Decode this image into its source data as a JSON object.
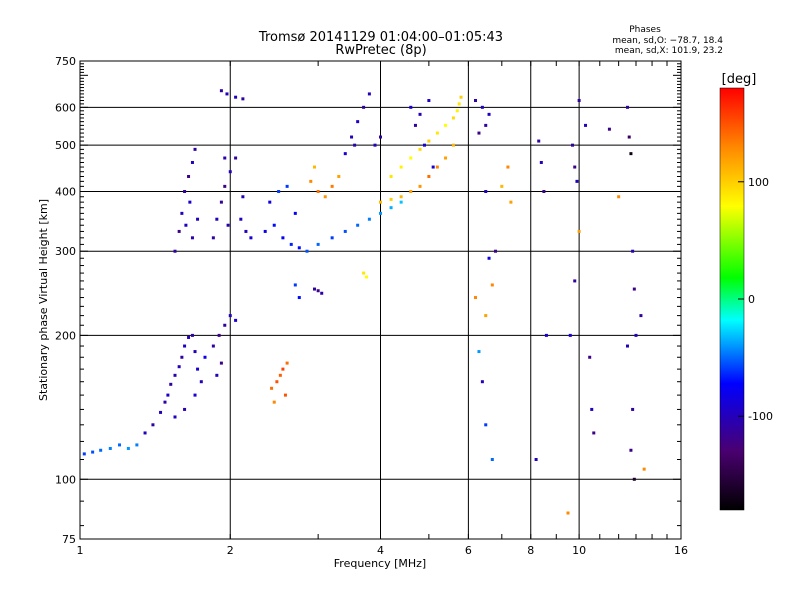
{
  "chart_data": {
    "type": "scatter",
    "title": "Tromsø 20141129 01:04:00–01:05:43",
    "subtitle": "RwPretec (8p)",
    "xlabel": "Frequency [MHz]",
    "ylabel": "Stationary phase Virtual Height [km]",
    "x_scale": "log",
    "y_scale": "log",
    "xlim": [
      1,
      16
    ],
    "ylim": [
      75,
      750
    ],
    "x_ticks": [
      1,
      2,
      4,
      6,
      8,
      10,
      16
    ],
    "y_ticks": [
      75,
      100,
      200,
      300,
      400,
      500,
      600,
      750
    ],
    "x_grid": [
      2,
      4,
      6,
      8,
      10
    ],
    "y_grid": [
      100,
      200,
      300,
      400,
      500,
      600
    ],
    "grid": true,
    "stats": {
      "heading": "Phases",
      "line1": "mean, sd,O: −78.7, 18.4",
      "line2": "mean, sd,X: 101.9, 23.2"
    },
    "colorbar": {
      "label": "[deg]",
      "range": [
        -180,
        180
      ],
      "ticks": [
        100,
        0,
        -100
      ],
      "colors": [
        "#ff0000",
        "#ff8800",
        "#ffff00",
        "#00ff00",
        "#00ffff",
        "#0000ff",
        "#000000"
      ]
    },
    "points": [
      [
        1.02,
        113,
        -60
      ],
      [
        1.06,
        114,
        -55
      ],
      [
        1.1,
        115,
        -50
      ],
      [
        1.15,
        116,
        -45
      ],
      [
        1.2,
        118,
        -50
      ],
      [
        1.25,
        116,
        -40
      ],
      [
        1.3,
        118,
        -45
      ],
      [
        1.35,
        125,
        -100
      ],
      [
        1.4,
        130,
        -110
      ],
      [
        1.45,
        138,
        -100
      ],
      [
        1.48,
        145,
        -110
      ],
      [
        1.5,
        150,
        -95
      ],
      [
        1.52,
        158,
        -110
      ],
      [
        1.55,
        165,
        -105
      ],
      [
        1.58,
        172,
        -100
      ],
      [
        1.6,
        180,
        -110
      ],
      [
        1.62,
        190,
        -95
      ],
      [
        1.65,
        198,
        -100
      ],
      [
        1.68,
        200,
        -110
      ],
      [
        1.7,
        185,
        -100
      ],
      [
        1.72,
        170,
        -90
      ],
      [
        1.75,
        160,
        -100
      ],
      [
        1.62,
        140,
        -105
      ],
      [
        1.55,
        135,
        -95
      ],
      [
        1.7,
        150,
        -90
      ],
      [
        1.78,
        180,
        -80
      ],
      [
        1.85,
        190,
        -110
      ],
      [
        1.9,
        200,
        -120
      ],
      [
        1.95,
        210,
        -110
      ],
      [
        2.0,
        220,
        -100
      ],
      [
        2.05,
        215,
        -90
      ],
      [
        1.92,
        175,
        -120
      ],
      [
        1.88,
        165,
        -100
      ],
      [
        1.55,
        300,
        -110
      ],
      [
        1.58,
        330,
        -120
      ],
      [
        1.6,
        360,
        -100
      ],
      [
        1.62,
        400,
        -110
      ],
      [
        1.65,
        430,
        -120
      ],
      [
        1.68,
        460,
        -100
      ],
      [
        1.7,
        490,
        -110
      ],
      [
        1.66,
        380,
        -90
      ],
      [
        1.63,
        340,
        -95
      ],
      [
        1.68,
        320,
        -105
      ],
      [
        1.72,
        350,
        -100
      ],
      [
        1.85,
        320,
        -110
      ],
      [
        1.88,
        350,
        -100
      ],
      [
        1.92,
        380,
        -115
      ],
      [
        1.95,
        410,
        -120
      ],
      [
        2.0,
        440,
        -100
      ],
      [
        2.05,
        470,
        -110
      ],
      [
        2.1,
        350,
        -95
      ],
      [
        2.15,
        330,
        -100
      ],
      [
        2.2,
        320,
        -90
      ],
      [
        1.98,
        340,
        -105
      ],
      [
        2.12,
        390,
        -100
      ],
      [
        1.92,
        650,
        -110
      ],
      [
        1.97,
        640,
        -100
      ],
      [
        2.05,
        630,
        -95
      ],
      [
        2.12,
        625,
        -110
      ],
      [
        1.95,
        470,
        -105
      ],
      [
        2.35,
        330,
        -80
      ],
      [
        2.45,
        340,
        -70
      ],
      [
        2.55,
        320,
        -75
      ],
      [
        2.65,
        310,
        -65
      ],
      [
        2.75,
        305,
        -70
      ],
      [
        2.4,
        380,
        -85
      ],
      [
        2.6,
        410,
        -60
      ],
      [
        2.7,
        360,
        -75
      ],
      [
        2.5,
        400,
        -60
      ],
      [
        2.85,
        300,
        -55
      ],
      [
        3.0,
        310,
        -50
      ],
      [
        3.2,
        320,
        -60
      ],
      [
        3.4,
        330,
        -55
      ],
      [
        3.6,
        340,
        -50
      ],
      [
        3.8,
        350,
        -45
      ],
      [
        4.0,
        360,
        -40
      ],
      [
        4.2,
        370,
        -35
      ],
      [
        4.4,
        380,
        -30
      ],
      [
        2.9,
        420,
        130
      ],
      [
        3.0,
        400,
        140
      ],
      [
        3.1,
        390,
        125
      ],
      [
        3.2,
        410,
        135
      ],
      [
        3.3,
        430,
        120
      ],
      [
        2.95,
        450,
        110
      ],
      [
        3.4,
        480,
        -90
      ],
      [
        3.5,
        520,
        -100
      ],
      [
        3.6,
        560,
        -95
      ],
      [
        3.7,
        600,
        -110
      ],
      [
        3.8,
        640,
        -100
      ],
      [
        3.55,
        500,
        -105
      ],
      [
        3.9,
        500,
        -100
      ],
      [
        4.0,
        520,
        -110
      ],
      [
        4.2,
        430,
        90
      ],
      [
        4.4,
        450,
        85
      ],
      [
        4.6,
        470,
        80
      ],
      [
        4.8,
        490,
        95
      ],
      [
        5.0,
        510,
        100
      ],
      [
        5.2,
        530,
        90
      ],
      [
        5.4,
        550,
        80
      ],
      [
        5.6,
        570,
        95
      ],
      [
        5.7,
        590,
        85
      ],
      [
        5.75,
        610,
        90
      ],
      [
        5.8,
        630,
        100
      ],
      [
        5.6,
        500,
        110
      ],
      [
        5.4,
        470,
        120
      ],
      [
        5.2,
        450,
        130
      ],
      [
        5.0,
        430,
        140
      ],
      [
        4.8,
        410,
        125
      ],
      [
        4.6,
        400,
        120
      ],
      [
        4.4,
        390,
        110
      ],
      [
        4.2,
        385,
        100
      ],
      [
        4.0,
        380,
        110
      ],
      [
        4.6,
        600,
        -90
      ],
      [
        4.8,
        580,
        -100
      ],
      [
        5.0,
        620,
        -95
      ],
      [
        4.7,
        550,
        -110
      ],
      [
        4.9,
        500,
        -90
      ],
      [
        5.1,
        450,
        -95
      ],
      [
        2.42,
        155,
        140
      ],
      [
        2.48,
        160,
        150
      ],
      [
        2.52,
        165,
        145
      ],
      [
        2.55,
        170,
        155
      ],
      [
        2.6,
        175,
        140
      ],
      [
        2.45,
        145,
        130
      ],
      [
        2.58,
        150,
        150
      ],
      [
        2.7,
        255,
        -60
      ],
      [
        2.75,
        240,
        -70
      ],
      [
        2.95,
        250,
        -110
      ],
      [
        3.0,
        248,
        -120
      ],
      [
        3.05,
        245,
        -105
      ],
      [
        3.7,
        270,
        90
      ],
      [
        3.75,
        265,
        80
      ],
      [
        6.2,
        620,
        -110
      ],
      [
        6.4,
        600,
        -100
      ],
      [
        6.6,
        580,
        -95
      ],
      [
        6.5,
        550,
        -110
      ],
      [
        6.3,
        530,
        -120
      ],
      [
        6.2,
        240,
        130
      ],
      [
        6.5,
        220,
        120
      ],
      [
        6.3,
        185,
        -40
      ],
      [
        6.4,
        160,
        -100
      ],
      [
        6.5,
        130,
        -60
      ],
      [
        6.7,
        110,
        -50
      ],
      [
        6.6,
        290,
        -80
      ],
      [
        6.7,
        255,
        130
      ],
      [
        6.8,
        300,
        -120
      ],
      [
        6.5,
        400,
        -100
      ],
      [
        7.0,
        410,
        110
      ],
      [
        7.2,
        450,
        130
      ],
      [
        7.3,
        380,
        120
      ],
      [
        8.3,
        510,
        -110
      ],
      [
        8.4,
        460,
        -100
      ],
      [
        8.5,
        400,
        -120
      ],
      [
        8.6,
        200,
        -90
      ],
      [
        8.2,
        110,
        -100
      ],
      [
        9.7,
        500,
        -110
      ],
      [
        9.8,
        450,
        -120
      ],
      [
        9.9,
        420,
        -100
      ],
      [
        10.0,
        330,
        120
      ],
      [
        9.8,
        260,
        -110
      ],
      [
        9.6,
        200,
        -90
      ],
      [
        9.5,
        85,
        130
      ],
      [
        10.0,
        620,
        -110
      ],
      [
        10.3,
        550,
        -100
      ],
      [
        10.5,
        180,
        -120
      ],
      [
        10.6,
        140,
        -100
      ],
      [
        10.7,
        125,
        -120
      ],
      [
        11.5,
        540,
        -120
      ],
      [
        12.0,
        390,
        130
      ],
      [
        12.5,
        600,
        -110
      ],
      [
        12.6,
        520,
        -140
      ],
      [
        12.7,
        480,
        -170
      ],
      [
        12.8,
        300,
        -100
      ],
      [
        12.9,
        250,
        -120
      ],
      [
        13.0,
        200,
        -100
      ],
      [
        12.8,
        140,
        -110
      ],
      [
        12.9,
        100,
        -160
      ],
      [
        12.7,
        115,
        -120
      ],
      [
        12.5,
        190,
        -100
      ],
      [
        13.3,
        220,
        -110
      ],
      [
        13.5,
        105,
        130
      ]
    ]
  }
}
